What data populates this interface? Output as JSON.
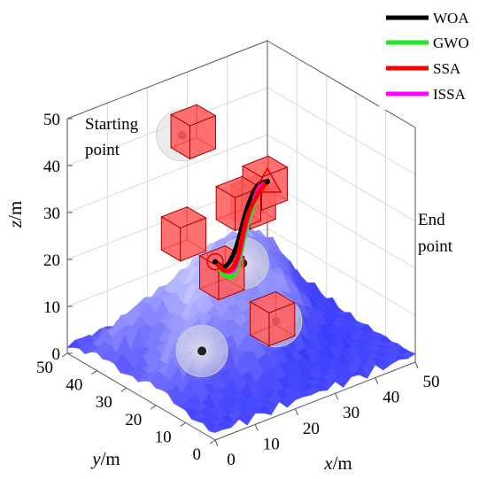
{
  "chart_data": {
    "type": "line",
    "projection": "3d",
    "xlabel": {
      "var": "x",
      "unit": "/m"
    },
    "ylabel": {
      "var": "y",
      "unit": "/m"
    },
    "zlabel": {
      "var": "z",
      "unit": "/m"
    },
    "xlim": [
      0,
      50
    ],
    "ylim": [
      0,
      50
    ],
    "zlim": [
      0,
      50
    ],
    "x_ticks": [
      "0",
      "10",
      "20",
      "30",
      "40",
      "50"
    ],
    "y_ticks": [
      "0",
      "10",
      "20",
      "30",
      "40",
      "50"
    ],
    "z_ticks": [
      "0",
      "10",
      "20",
      "30",
      "40",
      "50"
    ],
    "grid": true,
    "legend_position": "top-right",
    "start_label_lines": [
      "Starting",
      "point"
    ],
    "end_label_lines": [
      "End",
      "point"
    ],
    "start_point": [
      0,
      0,
      38
    ],
    "end_point": [
      50,
      50,
      20
    ],
    "series": [
      {
        "name": "WOA",
        "color": "#000000",
        "points": [
          [
            0,
            0,
            38
          ],
          [
            10,
            10,
            30
          ],
          [
            20,
            20,
            27
          ],
          [
            30,
            30,
            28
          ],
          [
            40,
            40,
            26
          ],
          [
            50,
            50,
            20
          ]
        ]
      },
      {
        "name": "GWO",
        "color": "#22e622",
        "points": [
          [
            0,
            0,
            38
          ],
          [
            10,
            10,
            28
          ],
          [
            20,
            20,
            22
          ],
          [
            30,
            30,
            24
          ],
          [
            40,
            40,
            24
          ],
          [
            50,
            50,
            20
          ]
        ]
      },
      {
        "name": "SSA",
        "color": "#ff0000",
        "points": [
          [
            0,
            0,
            38
          ],
          [
            10,
            10,
            29
          ],
          [
            20,
            20,
            24
          ],
          [
            30,
            30,
            26
          ],
          [
            40,
            40,
            24
          ],
          [
            50,
            50,
            20
          ]
        ]
      },
      {
        "name": "ISSA",
        "color": "#ff00ff",
        "points": [
          [
            0,
            0,
            38
          ],
          [
            10,
            10,
            29
          ],
          [
            20,
            20,
            23
          ],
          [
            30,
            30,
            25
          ],
          [
            40,
            40,
            25
          ],
          [
            50,
            50,
            20
          ]
        ]
      }
    ],
    "obstacles": {
      "type": "cube",
      "color": "#ff5555",
      "centers": [
        [
          15,
          18,
          24
        ],
        [
          18,
          35,
          25
        ],
        [
          28,
          30,
          30
        ],
        [
          18,
          5,
          18
        ],
        [
          30,
          48,
          38
        ],
        [
          42,
          40,
          26
        ],
        [
          45,
          48,
          18
        ]
      ]
    },
    "threat_zones": {
      "color": "#dcdcdc",
      "centers": [
        [
          10,
          18,
          9
        ],
        [
          30,
          20,
          8
        ],
        [
          35,
          38,
          12
        ],
        [
          25,
          45,
          40
        ]
      ]
    },
    "terrain_color": "#2424ff"
  }
}
